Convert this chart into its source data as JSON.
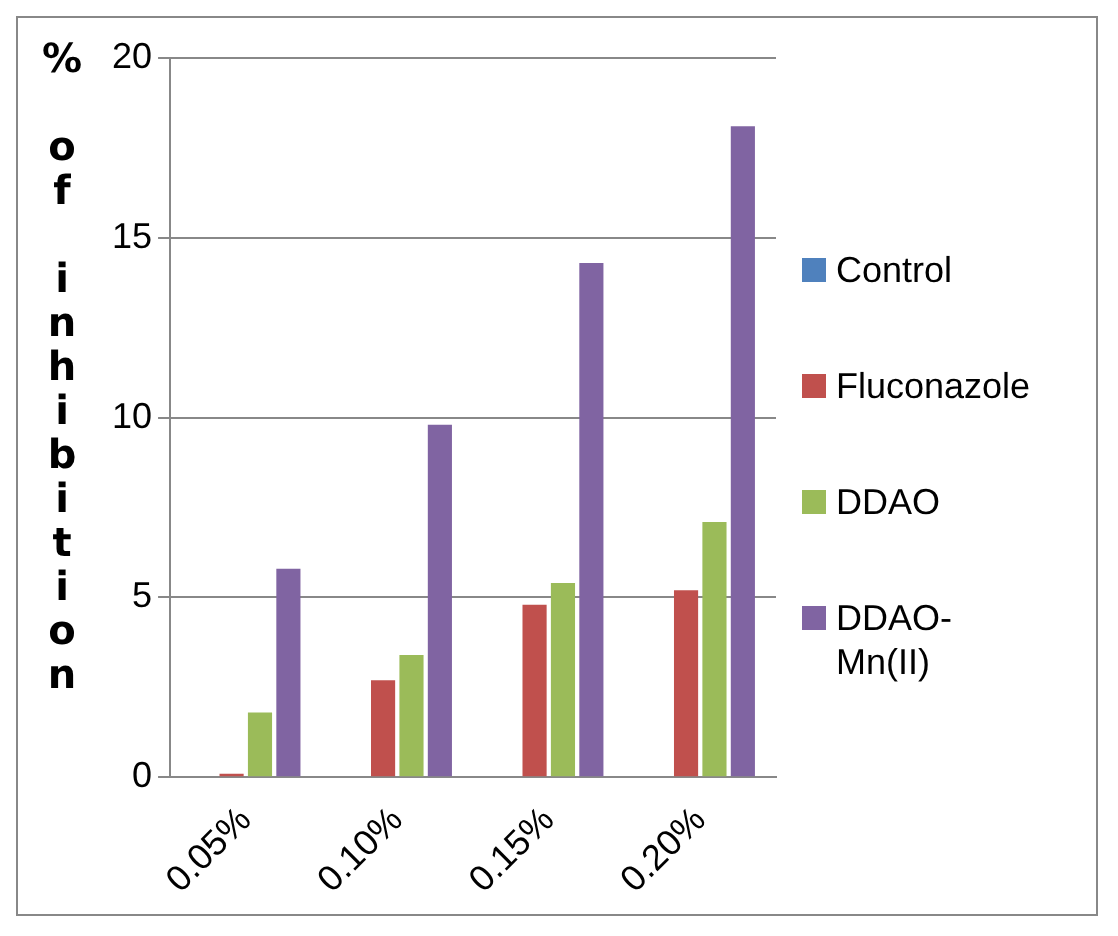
{
  "chart_data": {
    "type": "bar",
    "ylabel": "% of inhibition",
    "categories": [
      "0.05%",
      "0.10%",
      "0.15%",
      "0.20%"
    ],
    "series": [
      {
        "name": "Control",
        "color": "#4f81bd",
        "values": [
          0,
          0,
          0,
          0
        ]
      },
      {
        "name": "Fluconazole",
        "color": "#c0504d",
        "values": [
          0.1,
          2.7,
          4.8,
          5.2
        ]
      },
      {
        "name": "DDAO",
        "color": "#9bbb59",
        "values": [
          1.8,
          3.4,
          5.4,
          7.1
        ]
      },
      {
        "name": "DDAO-Mn(II)",
        "color": "#8064a2",
        "values": [
          5.8,
          9.8,
          14.3,
          18.1
        ]
      }
    ],
    "ylim": [
      0,
      20
    ],
    "yticks": [
      0,
      5,
      10,
      15,
      20
    ],
    "grid": "y",
    "legend": "right"
  }
}
